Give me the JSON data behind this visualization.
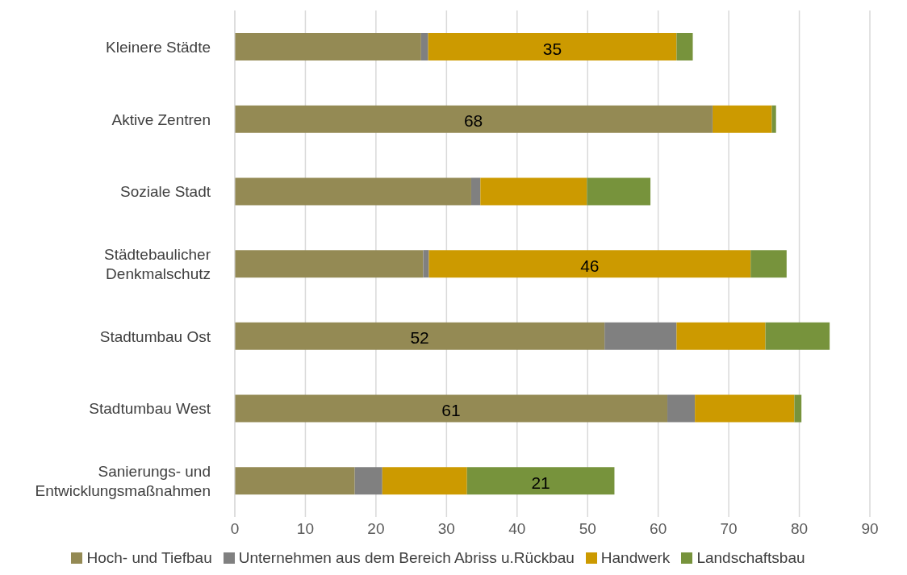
{
  "chart_data": {
    "type": "bar",
    "orientation": "horizontal",
    "stacked": true,
    "categories": [
      "Kleinere Städte",
      "Aktive Zentren",
      "Soziale Stadt",
      "Städtebaulicher Denkmalschutz",
      "Stadtumbau Ost",
      "Stadtumbau West",
      "Sanierungs- und Entwicklungsmaßnahmen"
    ],
    "series": [
      {
        "name": "Hoch- und Tiefbau",
        "color": "#948a54",
        "values": [
          26.4,
          67.6,
          33.5,
          26.7,
          52.4,
          61.3,
          17.0
        ],
        "value_labels": [
          null,
          "68",
          null,
          null,
          "52",
          "61",
          null
        ]
      },
      {
        "name": "Unternehmen aus dem Bereich Abriss u.Rückbau",
        "color": "#808080",
        "values": [
          1.0,
          0.1,
          1.3,
          0.8,
          10.2,
          3.9,
          3.9
        ],
        "value_labels": [
          null,
          null,
          null,
          null,
          null,
          null,
          null
        ]
      },
      {
        "name": "Handwerk",
        "color": "#cc9a00",
        "values": [
          35.2,
          8.4,
          15.1,
          45.6,
          12.6,
          14.1,
          12.0
        ],
        "value_labels": [
          "35",
          null,
          null,
          "46",
          null,
          null,
          null
        ]
      },
      {
        "name": "Landschaftsbau",
        "color": "#77933c",
        "values": [
          2.3,
          0.6,
          9.0,
          5.1,
          9.1,
          1.0,
          20.9
        ],
        "value_labels": [
          null,
          null,
          null,
          null,
          null,
          null,
          "21"
        ]
      }
    ],
    "xlim": [
      0,
      90
    ],
    "xticks": [
      0,
      10,
      20,
      30,
      40,
      50,
      60,
      70,
      80,
      90
    ],
    "grid": "x",
    "legend": "bottom"
  }
}
